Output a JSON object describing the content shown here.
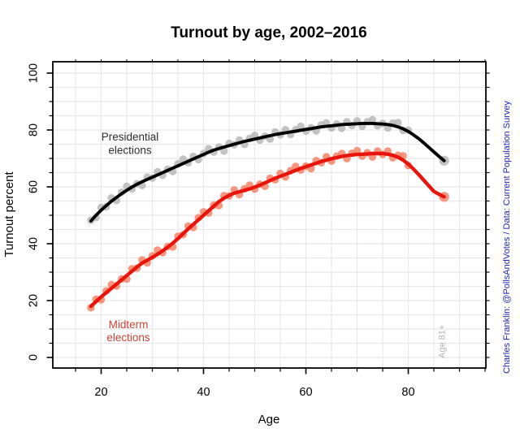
{
  "chart_data": {
    "type": "scatter",
    "smoother": "loess-style trend line over yearly points",
    "title": "Turnout by age, 2002–2016",
    "xlabel": "Age",
    "ylabel": "Turnout percent",
    "xlim": [
      15,
      95
    ],
    "ylim": [
      0,
      100
    ],
    "grid": "on, light gray, every 5 units both axes",
    "x_ticks_major": [
      20,
      40,
      60,
      80
    ],
    "x_tick_labels": [
      "20",
      "40",
      "60",
      "80"
    ],
    "y_ticks_major": [
      0,
      20,
      40,
      60,
      80,
      100
    ],
    "y_tick_labels": [
      "0",
      "20",
      "40",
      "60",
      "80",
      "100"
    ],
    "minor_tick_step": 5,
    "line_age_start": 18,
    "dot_ages": [
      18,
      19,
      20,
      21,
      22,
      23,
      24,
      25,
      26,
      27,
      28,
      29,
      30,
      31,
      32,
      33,
      34,
      35,
      36,
      37,
      38,
      39,
      40,
      41,
      42,
      43,
      44,
      45,
      46,
      47,
      48,
      49,
      50,
      51,
      52,
      53,
      54,
      55,
      56,
      57,
      58,
      59,
      60,
      61,
      62,
      63,
      64,
      65,
      66,
      67,
      68,
      69,
      70,
      71,
      72,
      73,
      74,
      75,
      76,
      77,
      78,
      79,
      80,
      87
    ],
    "bin81_age": 87,
    "series": [
      {
        "key": "presidential",
        "name": "Presidential elections",
        "color": "#000000",
        "dot_color": "#b8b8b8",
        "dot_opacity": 0.85,
        "line_width": 3.9,
        "line": [
          48,
          50,
          51.8,
          53.4,
          54.9,
          56.3,
          57.6,
          58.8,
          59.9,
          60.9,
          61.8,
          62.6,
          63.4,
          64.2,
          65,
          65.8,
          66.6,
          67.4,
          68.2,
          69,
          69.8,
          70.6,
          71.4,
          72.2,
          72.9,
          73.5,
          74,
          74.5,
          75,
          75.5,
          76,
          76.4,
          76.8,
          77.2,
          77.6,
          78,
          78.4,
          78.7,
          79,
          79.3,
          79.6,
          79.9,
          80.2,
          80.5,
          80.8,
          81.1,
          81.3,
          81.5,
          81.7,
          81.9,
          82,
          82.1,
          82.2,
          82.3,
          82.3,
          82.3,
          82.2,
          82.1,
          81.9,
          81.6,
          81.1,
          80.4,
          79.5,
          78.3,
          77,
          75.5,
          73.9,
          72.3,
          70.7,
          69.2
        ],
        "dots": [
          48.3,
          49.2,
          52.7,
          53,
          56.1,
          55.2,
          58.1,
          60.2,
          59.3,
          61.1,
          60.5,
          63.4,
          63.1,
          65.3,
          64.1,
          66.2,
          65.4,
          68.1,
          69.7,
          68.5,
          70.7,
          69.6,
          71.7,
          73.4,
          72.2,
          74,
          72.6,
          75.3,
          74.8,
          76.5,
          74.9,
          77,
          78.1,
          76.4,
          77.8,
          76.8,
          79.3,
          78.3,
          80.1,
          78.4,
          80.1,
          81.3,
          79.6,
          80.8,
          79.7,
          81.8,
          82.5,
          80.7,
          82.1,
          80.6,
          82.9,
          81.6,
          83.2,
          81.3,
          82.9,
          83.6,
          81.5,
          82.3,
          80.7,
          82.4,
          82.6,
          79.8,
          79.9,
          69.2
        ]
      },
      {
        "key": "midterm",
        "name": "Midterm elections",
        "color": "#e8150d",
        "dot_color": "#f4846a",
        "dot_opacity": 0.85,
        "line_width": 4.4,
        "line": [
          18,
          19.7,
          21.3,
          22.8,
          24.3,
          25.8,
          27.3,
          28.8,
          30.3,
          31.8,
          33.2,
          34.2,
          35.2,
          36.3,
          37.5,
          38.8,
          40.2,
          41.8,
          43.5,
          45.2,
          46.8,
          48.4,
          50,
          51.6,
          53.2,
          54.8,
          56,
          57,
          57.8,
          58.3,
          58.8,
          59.3,
          59.9,
          60.6,
          61.4,
          62.2,
          63,
          63.7,
          64.4,
          65.1,
          65.8,
          66.5,
          67.1,
          67.7,
          68.3,
          68.9,
          69.4,
          69.9,
          70.3,
          70.7,
          71,
          71.2,
          71.4,
          71.5,
          71.6,
          71.7,
          71.7,
          71.7,
          71.5,
          71.1,
          70.4,
          69.4,
          68,
          66.3,
          64.4,
          62.4,
          60.4,
          58.4,
          57.4,
          56.5
        ],
        "dots": [
          17.5,
          20.5,
          20.3,
          23.4,
          25.6,
          25.1,
          27.6,
          27.6,
          31.2,
          31.4,
          34.3,
          33.3,
          35.7,
          37.7,
          36.9,
          39,
          38.9,
          42.6,
          43.2,
          46.2,
          45.7,
          49.1,
          51.2,
          50.8,
          53.6,
          53.4,
          56.9,
          56.8,
          58.9,
          57.3,
          59.3,
          60.6,
          59.2,
          60.9,
          60.2,
          63,
          62.5,
          64.7,
          63.5,
          65.7,
          67.2,
          65.9,
          67.3,
          66.4,
          69.2,
          68.5,
          70.6,
          69.1,
          70.8,
          71.7,
          69.9,
          71.8,
          72.7,
          70.8,
          72,
          70.5,
          72.6,
          71.4,
          72.6,
          70.2,
          71.1,
          70.9,
          67.5,
          56.5
        ]
      }
    ],
    "annotations": {
      "presidential_label": [
        "Presidential",
        "elections"
      ],
      "midterm_label": [
        "Midterm",
        "elections"
      ],
      "age_bin_note": "Age 81+",
      "attribution": "Charles Franklin: @PollsAndVotes / Data: Current Population Survey"
    },
    "colors": {
      "presidential_line": "#000000",
      "presidential_dots": "#b8b8b8",
      "midterm_line": "#e8150d",
      "midterm_dots": "#f4846a",
      "presidential_label": "#2e2e2e",
      "midterm_label": "#cd4237",
      "attribution_text": "#2323bb",
      "age_note_text": "#b3b3b3",
      "grid": "#e8e8e8",
      "axis_box": "#000000"
    }
  }
}
